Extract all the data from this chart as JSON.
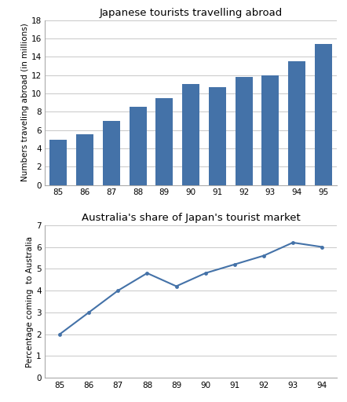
{
  "bar_years": [
    "85",
    "86",
    "87",
    "88",
    "89",
    "90",
    "91",
    "92",
    "93",
    "94",
    "95"
  ],
  "bar_values": [
    4.9,
    5.5,
    7.0,
    8.5,
    9.5,
    11.0,
    10.7,
    11.8,
    12.0,
    13.5,
    15.4
  ],
  "bar_color": "#4472a8",
  "bar_title": "Japanese tourists travelling abroad",
  "bar_ylabel": "Numbers traveling abroad (in millions)",
  "bar_ylim": [
    0,
    18
  ],
  "bar_yticks": [
    0,
    2,
    4,
    6,
    8,
    10,
    12,
    14,
    16,
    18
  ],
  "line_years": [
    "85",
    "86",
    "87",
    "88",
    "89",
    "90",
    "91",
    "92",
    "93",
    "94"
  ],
  "line_values": [
    2.0,
    3.0,
    4.0,
    4.8,
    4.2,
    4.8,
    5.2,
    5.6,
    6.2,
    6.0
  ],
  "line_color": "#4472a8",
  "line_title": "Australia's share of Japan's tourist market",
  "line_ylabel": "Percentage coming  to Australia",
  "line_ylim": [
    0,
    7
  ],
  "line_yticks": [
    0,
    1,
    2,
    3,
    4,
    5,
    6,
    7
  ],
  "bg_color": "#ffffff",
  "grid_color": "#c8c8c8",
  "title_fontsize": 9.5,
  "label_fontsize": 7.5,
  "tick_fontsize": 7.5
}
